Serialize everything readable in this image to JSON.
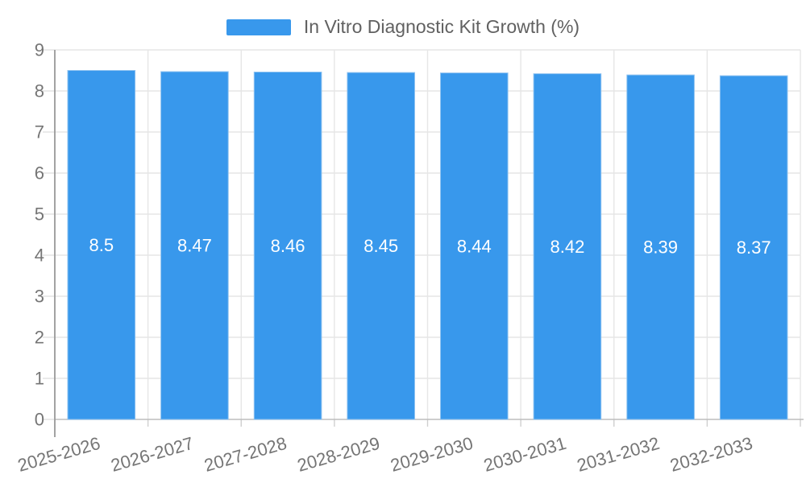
{
  "legend": {
    "label": "In Vitro Diagnostic Kit Growth (%)",
    "swatch_color": "#3898ec"
  },
  "chart_data": {
    "type": "bar",
    "title": "",
    "xlabel": "",
    "ylabel": "",
    "categories": [
      "2025-2026",
      "2026-2027",
      "2027-2028",
      "2028-2029",
      "2029-2030",
      "2030-2031",
      "2031-2032",
      "2032-2033"
    ],
    "series": [
      {
        "name": "In Vitro Diagnostic Kit Growth (%)",
        "values": [
          8.5,
          8.47,
          8.46,
          8.45,
          8.44,
          8.42,
          8.39,
          8.37
        ],
        "value_labels": [
          "8.5",
          "8.47",
          "8.46",
          "8.45",
          "8.44",
          "8.42",
          "8.39",
          "8.37"
        ],
        "color": "#3898ec"
      }
    ],
    "ylim": [
      0,
      9
    ],
    "y_ticks": [
      0,
      1,
      2,
      3,
      4,
      5,
      6,
      7,
      8,
      9
    ],
    "y_tick_labels": [
      "0",
      "1",
      "2",
      "3",
      "4",
      "5",
      "6",
      "7",
      "8",
      "9"
    ],
    "grid": true,
    "legend_position": "top",
    "value_label_position": "inside-middle"
  },
  "colors": {
    "bar": "#3898ec",
    "bar_edge": "#8fc3f1",
    "grid": "#e6e6e6",
    "y_axis": "#999999",
    "x_axis": "#bdbdbd",
    "tick": "#e0e0e0",
    "axis_tick": "#cfcfcf",
    "tick_label": "#757575",
    "value_label": "#ffffff",
    "legend_text": "#616161",
    "background": "#ffffff"
  }
}
